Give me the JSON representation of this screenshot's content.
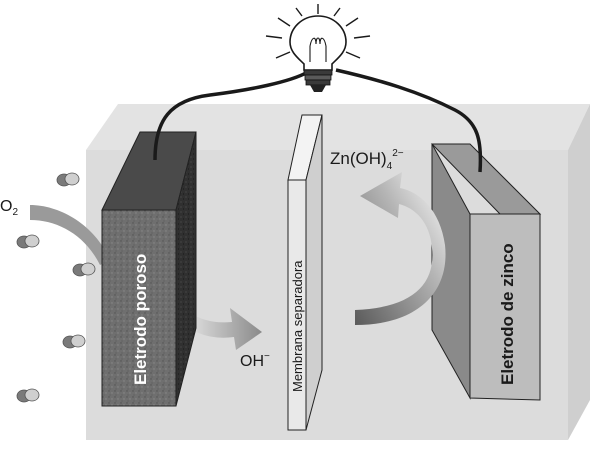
{
  "labels": {
    "o2": "O",
    "o2_sub": "2",
    "oh": "OH",
    "oh_sup": "−",
    "zincate": "Zn(OH)",
    "zincate_sub": "4",
    "zincate_sup": "2−",
    "porous_electrode": "Eletrodo poroso",
    "membrane": "Membrana separadora",
    "zinc_electrode": "Eletrodo de zinco"
  },
  "icons": {
    "bulb": "light-bulb-icon",
    "molecule": "oxygen-molecule-icon"
  },
  "colors": {
    "tank": "#e3e3e3",
    "porous_front": "#6f6f6f",
    "porous_side": "#3a3a3a",
    "membrane": "#e9e9e9",
    "zinc_front": "#bdbdbd",
    "zinc_side": "#8a8a8a",
    "arrow": "#8f8f8f",
    "wire": "#1a1a1a"
  }
}
